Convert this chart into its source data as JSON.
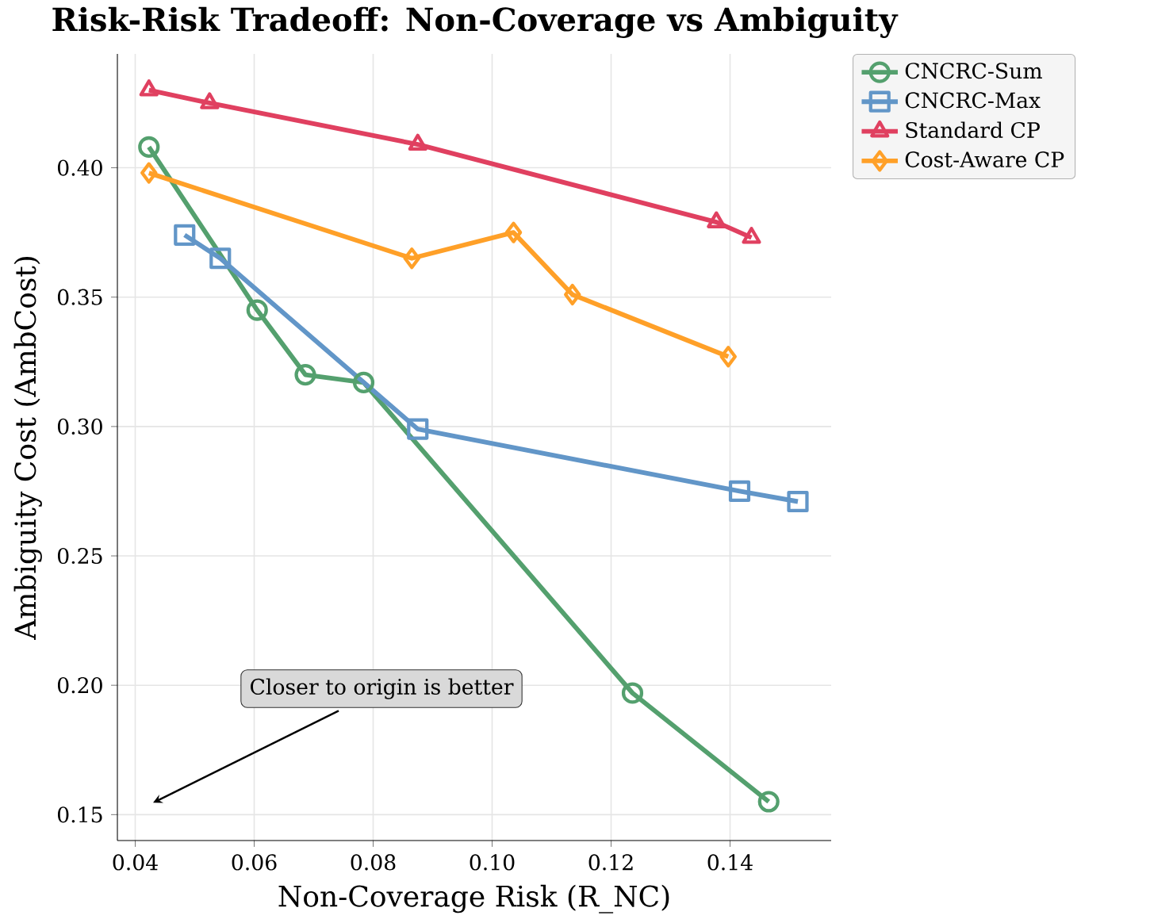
{
  "chart_data": {
    "type": "line",
    "title": "Risk-Risk Tradeoff: Non-Coverage vs Ambiguity",
    "xlabel": "Non-Coverage Risk (R_NC)",
    "ylabel": "Ambiguity Cost (AmbCost)",
    "xlim": [
      0.037,
      0.157
    ],
    "ylim": [
      0.14,
      0.444
    ],
    "xticks": [
      {
        "value": 0.04,
        "label": "0.04"
      },
      {
        "value": 0.06,
        "label": "0.06"
      },
      {
        "value": 0.08,
        "label": "0.08"
      },
      {
        "value": 0.1,
        "label": "0.10"
      },
      {
        "value": 0.12,
        "label": "0.12"
      },
      {
        "value": 0.14,
        "label": "0.14"
      }
    ],
    "yticks": [
      {
        "value": 0.15,
        "label": "0.15"
      },
      {
        "value": 0.2,
        "label": "0.20"
      },
      {
        "value": 0.25,
        "label": "0.25"
      },
      {
        "value": 0.3,
        "label": "0.30"
      },
      {
        "value": 0.35,
        "label": "0.35"
      },
      {
        "value": 0.4,
        "label": "0.40"
      }
    ],
    "grid": true,
    "legend": "top right",
    "line_style": "solid",
    "series": [
      {
        "name": "CNCRC-Sum",
        "color": "#54a06e",
        "marker": "circle",
        "x": [
          0.0423,
          0.0605,
          0.0686,
          0.0784,
          0.1236,
          0.1465
        ],
        "values": [
          0.408,
          0.345,
          0.32,
          0.317,
          0.197,
          0.155
        ]
      },
      {
        "name": "CNCRC-Max",
        "color": "#6296c8",
        "marker": "square",
        "x": [
          0.0483,
          0.0543,
          0.0875,
          0.1416,
          0.1514
        ],
        "values": [
          0.374,
          0.365,
          0.299,
          0.275,
          0.271
        ]
      },
      {
        "name": "Standard CP",
        "color": "#e04060",
        "marker": "triangle",
        "x": [
          0.0423,
          0.0525,
          0.0875,
          0.1377,
          0.1436
        ],
        "values": [
          0.43,
          0.425,
          0.409,
          0.379,
          0.373
        ]
      },
      {
        "name": "Cost-Aware CP",
        "color": "#ffa028",
        "marker": "diamond",
        "x": [
          0.0423,
          0.0865,
          0.1036,
          0.1135,
          0.1397
        ],
        "values": [
          0.398,
          0.365,
          0.375,
          0.351,
          0.327
        ]
      }
    ],
    "annotations": [
      "Closer to origin is better"
    ]
  }
}
